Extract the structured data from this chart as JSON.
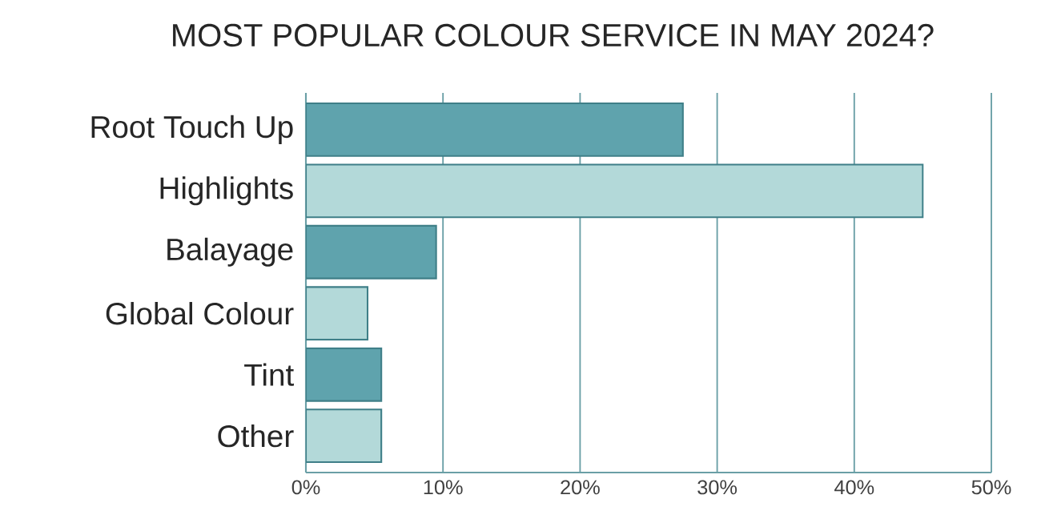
{
  "chart_data": {
    "type": "bar",
    "orientation": "horizontal",
    "title": "MOST POPULAR COLOUR SERVICE IN MAY 2024?",
    "categories": [
      "Root Touch Up",
      "Highlights",
      "Balayage",
      "Global Colour",
      "Tint",
      "Other"
    ],
    "values": [
      27.5,
      45,
      9.5,
      4.5,
      5.5,
      5.5
    ],
    "colors": [
      "#5fa3ad",
      "#b3d9d9",
      "#5fa3ad",
      "#b3d9d9",
      "#5fa3ad",
      "#b3d9d9"
    ],
    "xlim": [
      0,
      50
    ],
    "xticks": [
      {
        "value": 0,
        "label": "0%"
      },
      {
        "value": 10,
        "label": "10%"
      },
      {
        "value": 20,
        "label": "20%"
      },
      {
        "value": 30,
        "label": "30%"
      },
      {
        "value": 40,
        "label": "40%"
      },
      {
        "value": 50,
        "label": "50%"
      }
    ],
    "grid": "x"
  }
}
